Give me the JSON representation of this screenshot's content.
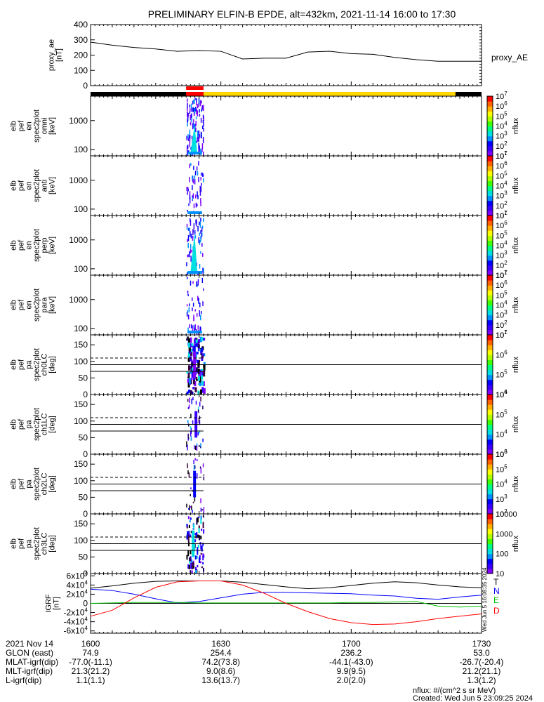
{
  "title": "PRELIMINARY ELFIN-B EPDE, alt=432km, 2021-11-14 16:00 to 17:30",
  "footer": {
    "nflux_units": "nflux: #/(cm^2 s sr MeV)",
    "created": "Created: Wed Jun  5 23:09:25 2024",
    "vertical_stamp": "Wed Jun  5 16:08:35 2024"
  },
  "ephemeris": {
    "rows": [
      {
        "label": "2021 Nov 14",
        "values": [
          "1600",
          "1630",
          "1700",
          "1730"
        ]
      },
      {
        "label": "GLON (east)",
        "values": [
          "74.9",
          "254.4",
          "236.2",
          "53.0"
        ]
      },
      {
        "label": "MLAT-igrf(dip)",
        "values": [
          "-77.0(-11.1)",
          "74.2(73.8)",
          "-44.1(-43.0)",
          "-26.7(-20.4)"
        ]
      },
      {
        "label": "MLT-igrf(dip)",
        "values": [
          "21.3(21.2)",
          "9.0(8.6)",
          "9.9(9.5)",
          "21.2(21.1)"
        ]
      },
      {
        "label": "L-igrf(dip)",
        "values": [
          "1.1(1.1)",
          "13.6(13.7)",
          "2.0(2.0)",
          "1.3(1.2)"
        ]
      }
    ]
  },
  "chart_data": [
    {
      "type": "line",
      "name": "proxy_ae",
      "ylabel_lines": [
        "proxy_ae",
        "[nT]"
      ],
      "legend": "proxy_AE",
      "ylim": [
        0,
        400
      ],
      "yticks": [
        "0",
        "100",
        "200",
        "300",
        "400"
      ],
      "x": [
        "16:00",
        "16:05",
        "16:10",
        "16:15",
        "16:20",
        "16:25",
        "16:30",
        "16:35",
        "16:40",
        "16:45",
        "16:50",
        "16:55",
        "17:00",
        "17:05",
        "17:10",
        "17:15",
        "17:20",
        "17:25",
        "17:30"
      ],
      "values": [
        285,
        265,
        250,
        240,
        225,
        230,
        225,
        175,
        180,
        180,
        220,
        225,
        210,
        205,
        185,
        170,
        160,
        160,
        160
      ]
    },
    {
      "type": "bar",
      "name": "orbit indicator",
      "segments": [
        {
          "start_min": 0,
          "end_min": 90,
          "color": "#000000"
        },
        {
          "start_min": 26,
          "end_min": 90,
          "color": "#ffd700"
        },
        {
          "start_min": 22,
          "end_min": 26,
          "color": "#ff0000"
        },
        {
          "start_min": 84,
          "end_min": 90,
          "color": "#000000"
        }
      ]
    },
    {
      "type": "heatmap",
      "name": "elb pef en spec2plot omni",
      "ylabel_lines": [
        "elb",
        "pef",
        "en",
        "spec2plot",
        "omni",
        "[keV]"
      ],
      "yscale": "log",
      "ylim_keV": [
        60,
        7000
      ],
      "yticks": [
        "100",
        "1000"
      ],
      "cbar_label": "nflux",
      "cbar_ticks": [
        "10^1",
        "10^2",
        "10^3",
        "10^4",
        "10^5",
        "10^6",
        "10^7"
      ],
      "burst_window_min": [
        22,
        26
      ]
    },
    {
      "type": "heatmap",
      "name": "elb pef en spec2plot anti",
      "ylabel_lines": [
        "elb",
        "pef",
        "en",
        "spec2plot",
        "anti",
        "[keV]"
      ],
      "yscale": "log",
      "ylim_keV": [
        60,
        7000
      ],
      "yticks": [
        "100",
        "1000"
      ],
      "cbar_label": "nflux",
      "cbar_ticks": [
        "10^1",
        "10^2",
        "10^3",
        "10^4",
        "10^5",
        "10^6",
        "10^7"
      ],
      "burst_window_min": [
        22,
        26
      ]
    },
    {
      "type": "heatmap",
      "name": "elb pef en spec2plot perp",
      "ylabel_lines": [
        "elb",
        "pef",
        "en",
        "spec2plot",
        "perp",
        "[keV]"
      ],
      "yscale": "log",
      "ylim_keV": [
        60,
        7000
      ],
      "yticks": [
        "100",
        "1000"
      ],
      "cbar_label": "nflux",
      "cbar_ticks": [
        "10^1",
        "10^2",
        "10^3",
        "10^4",
        "10^5",
        "10^6",
        "10^7"
      ],
      "burst_window_min": [
        22,
        26
      ]
    },
    {
      "type": "heatmap",
      "name": "elb pef en spec2plot para",
      "ylabel_lines": [
        "elb",
        "pef",
        "en",
        "spec2plot",
        "para",
        "[keV]"
      ],
      "yscale": "log",
      "ylim_keV": [
        60,
        7000
      ],
      "yticks": [
        "100",
        "1000"
      ],
      "cbar_label": "nflux",
      "cbar_ticks": [
        "10^1",
        "10^2",
        "10^3",
        "10^4",
        "10^5",
        "10^6",
        "10^7"
      ],
      "burst_window_min": [
        22,
        26
      ]
    },
    {
      "type": "heatmap",
      "name": "elb pef pa spec2plot ch0LC",
      "ylabel_lines": [
        "elb",
        "pef",
        "pa",
        "spec2plot",
        "ch0LC",
        "[deg]"
      ],
      "ylim_deg": [
        0,
        180
      ],
      "yticks": [
        "0",
        "50",
        "100",
        "150"
      ],
      "cbar_label": "nflux",
      "cbar_ticks": [
        "10^4",
        "10^5",
        "10^6",
        "10^7"
      ],
      "lines_deg": {
        "loss_cone": 70,
        "antiloss_cone": 110,
        "perpendicular": 90
      },
      "burst_window_min": [
        22,
        26
      ]
    },
    {
      "type": "heatmap",
      "name": "elb pef pa spec2plot ch1LC",
      "ylabel_lines": [
        "elb",
        "pef",
        "pa",
        "spec2plot",
        "ch1LC",
        "[deg]"
      ],
      "ylim_deg": [
        0,
        180
      ],
      "yticks": [
        "0",
        "50",
        "100",
        "150"
      ],
      "cbar_label": "nflux",
      "cbar_ticks": [
        "10^3",
        "10^4",
        "10^5",
        "10^6"
      ],
      "lines_deg": {
        "loss_cone": 70,
        "antiloss_cone": 110,
        "perpendicular": 90
      },
      "burst_window_min": [
        22,
        26
      ]
    },
    {
      "type": "heatmap",
      "name": "elb pef pa spec2plot ch2LC",
      "ylabel_lines": [
        "elb",
        "pef",
        "pa",
        "spec2plot",
        "ch2LC",
        "[deg]"
      ],
      "ylim_deg": [
        0,
        180
      ],
      "yticks": [
        "0",
        "50",
        "100",
        "150"
      ],
      "cbar_label": "nflux",
      "cbar_ticks": [
        "10^2",
        "10^3",
        "10^4",
        "10^5",
        "10^6"
      ],
      "lines_deg": {
        "loss_cone": 70,
        "antiloss_cone": 110,
        "perpendicular": 90
      },
      "burst_window_min": [
        22,
        26
      ]
    },
    {
      "type": "heatmap",
      "name": "elb pef pa spec2plot ch3LC",
      "ylabel_lines": [
        "elb",
        "pef",
        "pa",
        "spec2plot",
        "ch3LC",
        "[deg]"
      ],
      "ylim_deg": [
        0,
        180
      ],
      "yticks": [
        "0",
        "50",
        "100",
        "150"
      ],
      "cbar_label": "nflux",
      "cbar_ticks": [
        "10",
        "100",
        "1000",
        "10000"
      ],
      "lines_deg": {
        "loss_cone": 70,
        "antiloss_cone": 110,
        "perpendicular": 90
      },
      "burst_window_min": [
        22,
        26
      ]
    },
    {
      "type": "line",
      "name": "IGRF",
      "ylabel_lines": [
        "IGRF",
        "[nT]"
      ],
      "ylim": [
        -65000,
        65000
      ],
      "yticks": [
        "-6x10^4",
        "-4x10^4",
        "-2x10^4",
        "0",
        "2x10^4",
        "4x10^4",
        "6x10^4"
      ],
      "x_min": [
        0,
        5,
        10,
        15,
        20,
        25,
        30,
        35,
        40,
        45,
        50,
        55,
        60,
        65,
        70,
        75,
        80,
        85,
        90
      ],
      "series": [
        {
          "name": "T",
          "color": "#000000",
          "values": [
            33000,
            38000,
            44000,
            48000,
            49000,
            49000,
            49000,
            46000,
            41000,
            36000,
            32000,
            34000,
            39000,
            44000,
            47000,
            45000,
            40000,
            36000,
            34000
          ]
        },
        {
          "name": "N",
          "color": "#0000ff",
          "values": [
            31000,
            28000,
            20000,
            10000,
            1000,
            4000,
            12000,
            20000,
            24000,
            24000,
            23000,
            22000,
            21000,
            18000,
            16000,
            11000,
            9000,
            14000,
            18000
          ]
        },
        {
          "name": "E",
          "color": "#00c000",
          "values": [
            0,
            1000,
            2000,
            2000,
            2000,
            1000,
            1000,
            1000,
            1000,
            1000,
            1000,
            1000,
            2000,
            2000,
            3000,
            4000,
            -6000,
            -8000,
            -6000
          ]
        },
        {
          "name": "D",
          "color": "#ff0000",
          "values": [
            -28000,
            -15000,
            12000,
            35000,
            47000,
            49000,
            49000,
            40000,
            22000,
            0,
            -18000,
            -33000,
            -42000,
            -46000,
            -45000,
            -40000,
            -33000,
            -28000,
            -23000
          ]
        }
      ]
    }
  ]
}
